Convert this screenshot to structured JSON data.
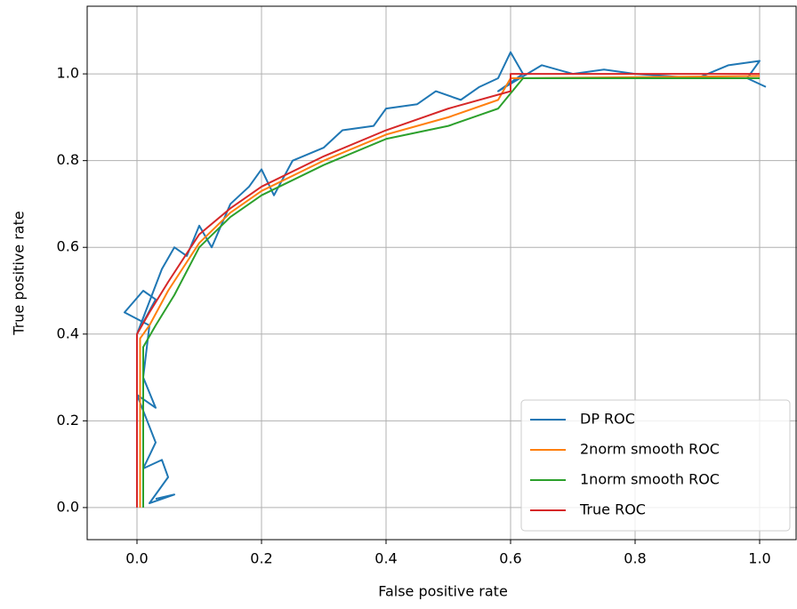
{
  "chart_data": {
    "type": "line",
    "xlabel": "False positive rate",
    "ylabel": "True positive rate",
    "xlim": [
      -0.08,
      1.06
    ],
    "ylim": [
      -0.074,
      1.156
    ],
    "xticks": [
      {
        "value": 0,
        "label": "0.0"
      },
      0.2,
      0.4,
      0.6,
      0.8,
      {
        "value": 1,
        "label": "1.0"
      }
    ],
    "yticks": [
      {
        "value": 0,
        "label": "0.0"
      },
      0.2,
      0.4,
      0.6,
      0.8,
      {
        "value": 1,
        "label": "1.0"
      }
    ],
    "grid": true,
    "legend": "lower right",
    "series": [
      {
        "name": "DP ROC",
        "color": "#1f77b4",
        "x": [
          0.03,
          0.06,
          0.02,
          0.05,
          0.04,
          0.01,
          0.03,
          0.0,
          0.03,
          0.01,
          0.02,
          -0.02,
          0.01,
          0.03,
          0.0,
          0.04,
          0.06,
          0.08,
          0.1,
          0.12,
          0.15,
          0.18,
          0.2,
          0.22,
          0.25,
          0.3,
          0.33,
          0.38,
          0.4,
          0.45,
          0.48,
          0.52,
          0.55,
          0.58,
          0.6,
          0.62,
          0.58,
          0.65,
          0.7,
          0.75,
          0.8,
          0.9,
          0.95,
          1.0,
          0.98,
          1.01
        ],
        "values": [
          0.02,
          0.03,
          0.01,
          0.07,
          0.11,
          0.09,
          0.15,
          0.26,
          0.23,
          0.3,
          0.42,
          0.45,
          0.5,
          0.48,
          0.4,
          0.55,
          0.6,
          0.58,
          0.65,
          0.6,
          0.7,
          0.74,
          0.78,
          0.72,
          0.8,
          0.83,
          0.87,
          0.88,
          0.92,
          0.93,
          0.96,
          0.94,
          0.97,
          0.99,
          1.05,
          1.0,
          0.96,
          1.02,
          1.0,
          1.01,
          1.0,
          0.99,
          1.02,
          1.03,
          0.99,
          0.97
        ]
      },
      {
        "name": "2norm smooth ROC",
        "color": "#ff7f0e",
        "x": [
          0.005,
          0.005,
          0.02,
          0.05,
          0.1,
          0.15,
          0.2,
          0.3,
          0.4,
          0.5,
          0.58,
          0.6,
          1.0
        ],
        "values": [
          0,
          0.39,
          0.42,
          0.5,
          0.61,
          0.68,
          0.73,
          0.8,
          0.86,
          0.9,
          0.94,
          0.99,
          0.995
        ]
      },
      {
        "name": "1norm smooth ROC",
        "color": "#2ca02c",
        "x": [
          0.01,
          0.01,
          0.03,
          0.06,
          0.1,
          0.15,
          0.2,
          0.3,
          0.4,
          0.5,
          0.58,
          0.62,
          1.0
        ],
        "values": [
          0,
          0.37,
          0.42,
          0.49,
          0.6,
          0.67,
          0.72,
          0.79,
          0.85,
          0.88,
          0.92,
          0.99,
          0.99
        ]
      },
      {
        "name": "True ROC",
        "color": "#d62728",
        "x": [
          0,
          0,
          0.02,
          0.05,
          0.1,
          0.15,
          0.2,
          0.3,
          0.4,
          0.5,
          0.6,
          0.6,
          1.0
        ],
        "values": [
          0,
          0.4,
          0.45,
          0.52,
          0.63,
          0.69,
          0.74,
          0.81,
          0.87,
          0.92,
          0.96,
          1.0,
          1.0
        ]
      }
    ]
  }
}
